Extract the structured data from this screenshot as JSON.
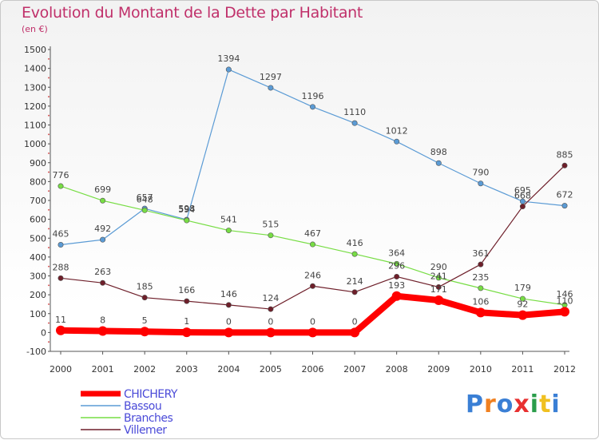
{
  "chart_data": {
    "type": "line",
    "title": "Evolution du Montant de la Dette par Habitant",
    "subtitle": "(en €)",
    "x": [
      "2000",
      "2001",
      "2002",
      "2003",
      "2004",
      "2005",
      "2006",
      "2007",
      "2008",
      "2009",
      "2010",
      "2011",
      "2012"
    ],
    "ylim": [
      -100,
      1500
    ],
    "yticks": [
      -100,
      0,
      100,
      200,
      300,
      400,
      500,
      600,
      700,
      800,
      900,
      1000,
      1100,
      1200,
      1300,
      1400,
      1500
    ],
    "grid": false,
    "legend_position": "bottom-left",
    "series": [
      {
        "name": "CHICHERY",
        "color": "#ff0000",
        "values": [
          11,
          8,
          5,
          1,
          0,
          0,
          0,
          0,
          193,
          171,
          106,
          92,
          110
        ]
      },
      {
        "name": "Bassou",
        "color": "#5b9bd5",
        "values": [
          465,
          492,
          657,
          598,
          1394,
          1297,
          1196,
          1110,
          1012,
          898,
          790,
          695,
          672
        ]
      },
      {
        "name": "Branches",
        "color": "#77dd44",
        "values": [
          776,
          699,
          648,
          594,
          541,
          515,
          467,
          416,
          364,
          290,
          235,
          179,
          146
        ]
      },
      {
        "name": "Villemer",
        "color": "#6e1f2a",
        "values": [
          288,
          263,
          185,
          166,
          146,
          124,
          246,
          214,
          296,
          241,
          361,
          668,
          885
        ]
      }
    ]
  },
  "logo": {
    "text": "Proxiti"
  }
}
